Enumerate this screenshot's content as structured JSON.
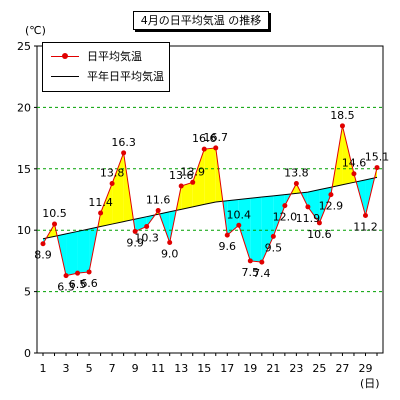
{
  "title": "4月の日平均気温 の推移",
  "legend": {
    "daily_label": "日平均気温",
    "normal_label": "平年日平均気温"
  },
  "y_unit": "(℃)",
  "x_unit": "(日)",
  "colors": {
    "daily_line": "#e00000",
    "normal_line": "#000000",
    "above_fill": "#ffff00",
    "below_fill": "#00ffff",
    "grid": "#00a000"
  },
  "chart_data": {
    "type": "line",
    "title": "4月の日平均気温 の推移",
    "xlabel": "(日)",
    "ylabel": "(℃)",
    "x": [
      1,
      2,
      3,
      4,
      5,
      6,
      7,
      8,
      9,
      10,
      11,
      12,
      13,
      14,
      15,
      16,
      17,
      18,
      19,
      20,
      21,
      22,
      23,
      24,
      25,
      26,
      27,
      28,
      29,
      30
    ],
    "x_ticks": [
      "1",
      "3",
      "5",
      "7",
      "9",
      "11",
      "13",
      "15",
      "17",
      "19",
      "21",
      "23",
      "25",
      "27",
      "29"
    ],
    "y_ticks": [
      "0",
      "5",
      "10",
      "15",
      "20",
      "25"
    ],
    "ylim": [
      0,
      25
    ],
    "xlim": [
      1,
      30
    ],
    "grid": "horizontal dashed at 5, 10, 15, 20",
    "legend_position": "top-left",
    "series": [
      {
        "name": "日平均気温",
        "values": [
          8.9,
          10.5,
          6.3,
          6.5,
          6.6,
          11.4,
          13.8,
          16.3,
          9.9,
          10.3,
          11.6,
          9.0,
          13.6,
          13.9,
          16.6,
          16.7,
          9.6,
          10.4,
          7.5,
          7.4,
          9.5,
          12.0,
          13.8,
          11.9,
          10.6,
          12.9,
          18.5,
          14.6,
          11.2,
          15.1
        ],
        "labels": [
          "8.9",
          "10.5",
          "6.3",
          "6.5",
          "6.6",
          "11.4",
          "13.8",
          "16.3",
          "9.9",
          "10.3",
          "11.6",
          "9.0",
          "13.6",
          "13.9",
          "16.6",
          "16.7",
          "9.6",
          "10.4",
          "7.5",
          "7.4",
          "9.5",
          "12.0",
          "13.8",
          "11.9",
          "10.6",
          "12.9",
          "18.5",
          "14.6",
          "11.2",
          "15.1"
        ]
      },
      {
        "name": "平年日平均気温",
        "values": [
          9.3,
          9.5,
          9.7,
          9.9,
          10.1,
          10.3,
          10.5,
          10.7,
          10.9,
          11.1,
          11.3,
          11.5,
          11.7,
          11.9,
          12.1,
          12.3,
          12.4,
          12.5,
          12.6,
          12.7,
          12.8,
          12.9,
          13.0,
          13.1,
          13.3,
          13.5,
          13.7,
          13.9,
          14.1,
          14.3
        ]
      }
    ]
  }
}
